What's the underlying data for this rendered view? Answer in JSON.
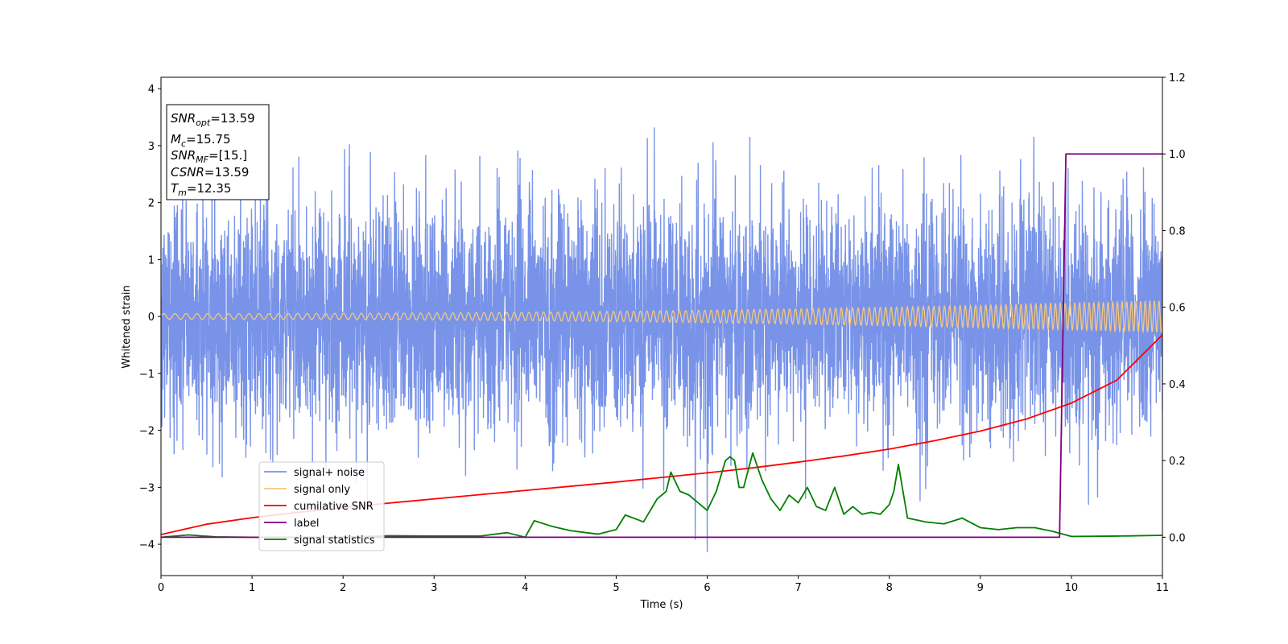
{
  "chart_data": {
    "type": "line",
    "title": "",
    "xlabel": "Time (s)",
    "ylabel": "Whitened strain",
    "xlim": [
      0,
      11
    ],
    "ylim": [
      -4.55,
      4.2
    ],
    "y2lim": [
      -0.1,
      1.2
    ],
    "xticks": [
      0,
      1,
      2,
      3,
      4,
      5,
      6,
      7,
      8,
      9,
      10,
      11
    ],
    "yticks": [
      -4,
      -3,
      -2,
      -1,
      0,
      1,
      2,
      3,
      4
    ],
    "y2ticks": [
      0.0,
      0.2,
      0.4,
      0.6,
      0.8,
      1.0,
      1.2
    ],
    "y2tick_labels": [
      "0.0",
      "0.2",
      "0.4",
      "0.6",
      "0.8",
      "1.0",
      "1.2"
    ],
    "grid": false,
    "legend_position": "lower-left",
    "annotation": {
      "lines": [
        {
          "base": "SNR",
          "sub": "opt",
          "rest": "=13.59"
        },
        {
          "base": "M",
          "sub": "c",
          "rest": "=15.75"
        },
        {
          "base": "SNR",
          "sub": "MF",
          "rest": "=[15.]"
        },
        {
          "base": "CSNR",
          "sub": "",
          "rest": "=13.59"
        },
        {
          "base": "T",
          "sub": "m",
          "rest": "=12.35"
        }
      ]
    },
    "series": [
      {
        "name": "signal+ noise",
        "color": "#7893e8",
        "axis": "left",
        "kind": "noise",
        "description": "Gaussian whitened noise, std about 1, spikes up to about 3.8"
      },
      {
        "name": "signal only",
        "color": "#f5c77e",
        "axis": "left",
        "kind": "chirp",
        "amplitude_start": 0.05,
        "amplitude_end": 0.28,
        "freq_start_hz": 8,
        "freq_end_hz": 20
      },
      {
        "name": "cumilative SNR",
        "color": "#ff0000",
        "axis": "right",
        "x": [
          0,
          0.5,
          1,
          1.5,
          2,
          2.5,
          3,
          3.5,
          4,
          4.5,
          5,
          5.5,
          6,
          6.5,
          7,
          7.5,
          8,
          8.5,
          9,
          9.5,
          10,
          10.5,
          11
        ],
        "values": [
          0.007,
          0.034,
          0.051,
          0.065,
          0.077,
          0.089,
          0.1,
          0.111,
          0.122,
          0.133,
          0.144,
          0.156,
          0.168,
          0.181,
          0.196,
          0.212,
          0.23,
          0.252,
          0.277,
          0.308,
          0.35,
          0.41,
          0.528
        ]
      },
      {
        "name": "label",
        "color": "#800080",
        "axis": "right",
        "x": [
          0,
          9.87,
          9.94,
          11
        ],
        "values": [
          0,
          0,
          1,
          1
        ]
      },
      {
        "name": "signal statistics",
        "color": "#008000",
        "axis": "right",
        "x": [
          0,
          0.3,
          0.6,
          1,
          1.5,
          2,
          2.5,
          3,
          3.5,
          3.8,
          4,
          4.1,
          4.3,
          4.5,
          4.8,
          5,
          5.1,
          5.3,
          5.45,
          5.55,
          5.6,
          5.7,
          5.8,
          5.9,
          6,
          6.1,
          6.2,
          6.25,
          6.3,
          6.35,
          6.4,
          6.5,
          6.6,
          6.7,
          6.8,
          6.9,
          7,
          7.1,
          7.2,
          7.3,
          7.4,
          7.5,
          7.6,
          7.7,
          7.8,
          7.9,
          8,
          8.05,
          8.1,
          8.2,
          8.4,
          8.6,
          8.8,
          9,
          9.2,
          9.4,
          9.6,
          9.8,
          10,
          10.5,
          11
        ],
        "values": [
          0.0,
          0.006,
          0.001,
          0.0,
          0.0,
          0.0,
          0.004,
          0.003,
          0.003,
          0.012,
          0.0,
          0.043,
          0.028,
          0.017,
          0.008,
          0.02,
          0.058,
          0.04,
          0.1,
          0.12,
          0.17,
          0.12,
          0.11,
          0.09,
          0.07,
          0.12,
          0.2,
          0.21,
          0.2,
          0.13,
          0.13,
          0.22,
          0.15,
          0.1,
          0.07,
          0.11,
          0.09,
          0.13,
          0.08,
          0.07,
          0.13,
          0.06,
          0.08,
          0.06,
          0.065,
          0.06,
          0.085,
          0.12,
          0.19,
          0.05,
          0.04,
          0.035,
          0.05,
          0.025,
          0.02,
          0.025,
          0.025,
          0.015,
          0.002,
          0.003,
          0.005
        ]
      }
    ]
  }
}
